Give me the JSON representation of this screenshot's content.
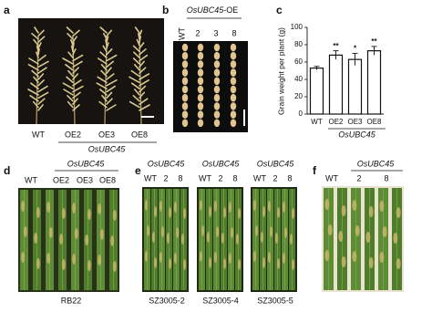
{
  "panel_a": {
    "letter": "a",
    "labels": [
      "WT",
      "OE2",
      "OE3",
      "OE8"
    ],
    "group": "OsUBC45"
  },
  "panel_b": {
    "letter": "b",
    "gene": "OsUBC45",
    "suffix": "-OE",
    "labels": [
      "WT",
      "2",
      "3",
      "8"
    ]
  },
  "chart_data": {
    "type": "bar",
    "letter": "c",
    "ylabel": "Grain weight per plant (g)",
    "categories": [
      "WT",
      "OE2",
      "OE3",
      "OE8"
    ],
    "values": [
      53,
      68,
      63,
      73
    ],
    "errors": [
      2,
      5,
      7,
      5
    ],
    "annotations": [
      null,
      "**",
      "*",
      "**"
    ],
    "group": "OsUBC45",
    "color": "#ffffff",
    "ylim": [
      0,
      100
    ],
    "yticks": [
      0,
      20,
      40,
      60,
      80,
      100
    ]
  },
  "panel_d": {
    "letter": "d",
    "group": "OsUBC45",
    "labels": [
      "WT",
      "OE2",
      "OE3",
      "OE8"
    ],
    "caption": "RB22"
  },
  "panel_e": {
    "letter": "e",
    "groups": [
      {
        "gene": "OsUBC45",
        "labels": [
          "WT",
          "2",
          "8"
        ],
        "caption": "SZ3005-2"
      },
      {
        "gene": "OsUBC45",
        "labels": [
          "WT",
          "2",
          "8"
        ],
        "caption": "SZ3005-4"
      },
      {
        "gene": "OsUBC45",
        "labels": [
          "WT",
          "2",
          "8"
        ],
        "caption": "SZ3005-5"
      }
    ]
  },
  "panel_f": {
    "letter": "f",
    "gene": "OsUBC45",
    "labels": [
      "WT",
      "2",
      "8"
    ]
  }
}
